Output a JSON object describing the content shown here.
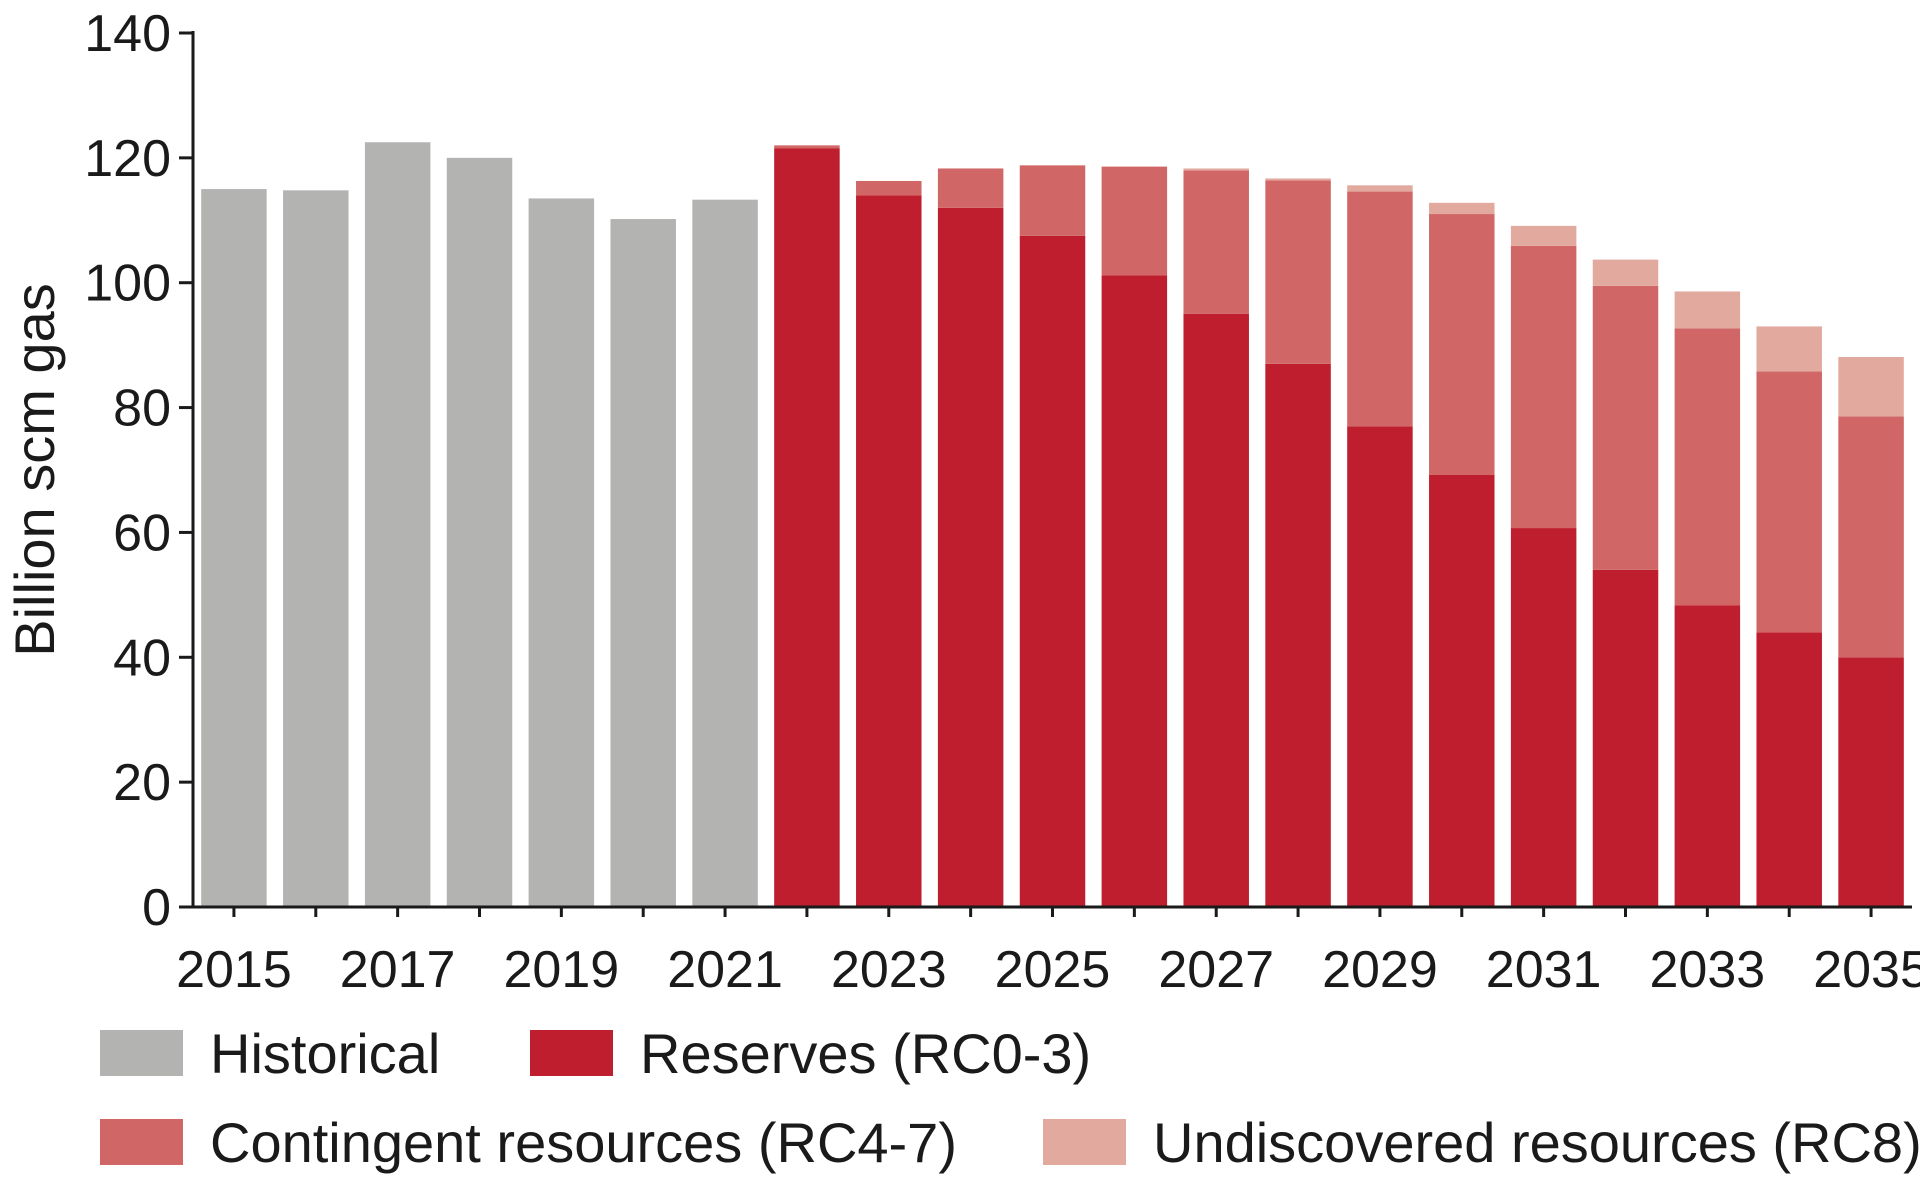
{
  "chart_data": {
    "type": "bar",
    "stacked": true,
    "xlabel": "",
    "ylabel": "Billion scm gas",
    "ylim": [
      0,
      140
    ],
    "yticks": [
      0,
      20,
      40,
      60,
      80,
      100,
      120,
      140
    ],
    "categories": [
      "2015",
      "2016",
      "2017",
      "2018",
      "2019",
      "2020",
      "2021",
      "2022",
      "2023",
      "2024",
      "2025",
      "2026",
      "2027",
      "2028",
      "2029",
      "2030",
      "2031",
      "2032",
      "2033",
      "2034",
      "2035"
    ],
    "xtick_labels": [
      "2015",
      "2017",
      "2019",
      "2021",
      "2023",
      "2025",
      "2027",
      "2029",
      "2031",
      "2033",
      "2035"
    ],
    "grid": false,
    "legend_position": "bottom",
    "series": [
      {
        "name": "Historical",
        "color": "#b3b3b2",
        "values": [
          115,
          114.8,
          122.5,
          120,
          113.5,
          110.2,
          113.3,
          0,
          0,
          0,
          0,
          0,
          0,
          0,
          0,
          0,
          0,
          0,
          0,
          0,
          0
        ]
      },
      {
        "name": "Reserves (RC0-3)",
        "color": "#be1e2d",
        "values": [
          0,
          0,
          0,
          0,
          0,
          0,
          0,
          121.5,
          114,
          112,
          107.5,
          101.2,
          95,
          87,
          77,
          69.2,
          60.7,
          54,
          48.3,
          44,
          40
        ]
      },
      {
        "name": "Contingent resources (RC4-7)",
        "color": "#d16666",
        "values": [
          0,
          0,
          0,
          0,
          0,
          0,
          0,
          0.5,
          2.3,
          6.3,
          11.3,
          17.4,
          23,
          29.4,
          37.6,
          41.8,
          45.2,
          45.5,
          44.4,
          41.8,
          38.6
        ]
      },
      {
        "name": "Undiscovered resources (RC8)",
        "color": "#e2aa9e",
        "values": [
          0,
          0,
          0,
          0,
          0,
          0,
          0,
          0,
          0,
          0,
          0,
          0,
          0.3,
          0.3,
          1,
          1.8,
          3.2,
          4.2,
          5.9,
          7.2,
          9.5
        ]
      }
    ]
  }
}
